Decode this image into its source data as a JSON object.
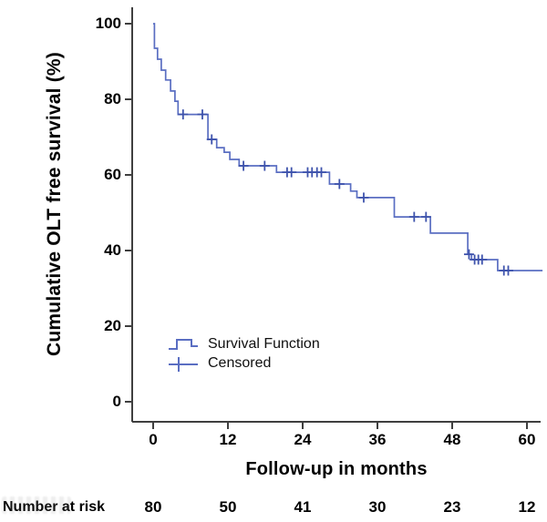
{
  "colors": {
    "curve": "#5a6ec2",
    "censor": "#3e53ac",
    "axis": "#3f3f3f",
    "text": "#000000",
    "background": "#ffffff"
  },
  "chart_data": {
    "type": "line",
    "subtype": "kaplan_meier_step",
    "title": "",
    "xlabel": "Follow-up in months",
    "ylabel": "Cumulative OLT free survival (%)",
    "xlim": [
      0,
      62.5
    ],
    "ylim": [
      0,
      100
    ],
    "x_ticks": [
      0,
      12,
      24,
      36,
      48,
      60
    ],
    "y_ticks": [
      0,
      20,
      40,
      60,
      80,
      100
    ],
    "grid": false,
    "legend_position": "inside-bottom-left",
    "legend": [
      {
        "label": "Survival Function",
        "symbol": "step-line"
      },
      {
        "label": "Censored",
        "symbol": "plus"
      }
    ],
    "series": [
      {
        "name": "Survival Function",
        "steps_month_percent": [
          [
            0,
            100
          ],
          [
            0.2,
            93.5
          ],
          [
            0.7,
            90.6
          ],
          [
            1.3,
            87.7
          ],
          [
            2.0,
            85.1
          ],
          [
            2.8,
            82.2
          ],
          [
            3.5,
            79.5
          ],
          [
            4.0,
            76.0
          ],
          [
            8.8,
            69.4
          ],
          [
            10.2,
            67.2
          ],
          [
            11.4,
            66.0
          ],
          [
            12.3,
            64.1
          ],
          [
            13.8,
            62.4
          ],
          [
            19.8,
            60.7
          ],
          [
            28.3,
            57.6
          ],
          [
            31.7,
            55.7
          ],
          [
            32.7,
            54.0
          ],
          [
            38.7,
            48.9
          ],
          [
            44.5,
            44.6
          ],
          [
            50.5,
            39.0
          ],
          [
            51.1,
            37.6
          ],
          [
            55.3,
            34.7
          ]
        ],
        "end_month": 62.5
      }
    ],
    "censored_month_percent": [
      [
        4.8,
        76.0
      ],
      [
        7.9,
        76.0
      ],
      [
        9.4,
        69.4
      ],
      [
        14.5,
        62.4
      ],
      [
        17.9,
        62.4
      ],
      [
        21.5,
        60.7
      ],
      [
        22.2,
        60.7
      ],
      [
        24.8,
        60.7
      ],
      [
        25.5,
        60.7
      ],
      [
        26.3,
        60.7
      ],
      [
        27.0,
        60.7
      ],
      [
        29.9,
        57.6
      ],
      [
        33.8,
        54.0
      ],
      [
        41.9,
        48.9
      ],
      [
        43.8,
        48.9
      ],
      [
        50.7,
        39.0
      ],
      [
        51.6,
        37.6
      ],
      [
        52.2,
        37.6
      ],
      [
        52.8,
        37.6
      ],
      [
        56.3,
        34.7
      ],
      [
        57.0,
        34.7
      ]
    ]
  },
  "number_at_risk": {
    "label": "Number at risk",
    "columns_months": [
      0,
      12,
      24,
      36,
      48,
      60
    ],
    "values": [
      80,
      50,
      41,
      30,
      23,
      12
    ]
  }
}
